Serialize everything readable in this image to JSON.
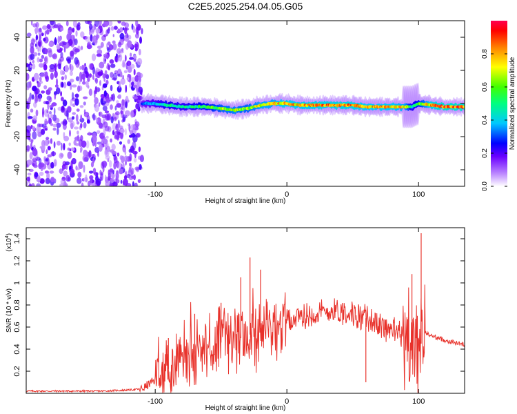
{
  "figure_title": "C2E5.2025.254.04.05.G05",
  "chart_data": [
    {
      "type": "heatmap",
      "title": "C2E5.2025.254.04.05.G05",
      "xlabel": "Height of straight line (km)",
      "ylabel": "Frequency (Hz)",
      "xlim": [
        -198,
        135
      ],
      "ylim": [
        -50,
        50
      ],
      "xticks": [
        -100,
        0,
        100
      ],
      "xtick_labels": [
        "-100",
        "0",
        "100"
      ],
      "yticks": [
        -40,
        -20,
        0,
        20,
        40
      ],
      "ytick_labels": [
        "-40",
        "-20",
        "0",
        "20",
        "40"
      ],
      "noise_region_x": [
        -198,
        -110
      ],
      "ridge": {
        "x": [
          -110,
          -100,
          -90,
          -80,
          -70,
          -60,
          -50,
          -40,
          -30,
          -20,
          -10,
          0,
          10,
          20,
          30,
          40,
          50,
          60,
          70,
          80,
          90,
          95,
          100,
          110,
          120,
          135
        ],
        "freq": [
          0,
          0,
          -1,
          -2,
          -2,
          -2,
          -3,
          -4,
          -3,
          -1,
          0,
          0,
          -1,
          -1,
          -1,
          -1,
          -1,
          -2,
          -2,
          -2,
          -2,
          -2,
          0,
          -1,
          -2,
          -2
        ],
        "amplitude": [
          0.35,
          0.45,
          0.55,
          0.5,
          0.55,
          0.6,
          0.7,
          0.75,
          0.7,
          0.8,
          0.8,
          0.9,
          0.85,
          0.9,
          0.9,
          0.9,
          0.9,
          0.85,
          0.85,
          0.85,
          0.8,
          0.5,
          0.6,
          0.9,
          0.95,
          0.95
        ]
      },
      "colorbar": {
        "label": "Normalized spectral amplitude",
        "range": [
          0,
          1
        ],
        "ticks": [
          0.0,
          0.2,
          0.4,
          0.6,
          0.8
        ],
        "tick_labels": [
          "0.0",
          "0.2",
          "0.4",
          "0.6",
          "0.8"
        ]
      }
    },
    {
      "type": "line",
      "xlabel": "Height of straight line (km)",
      "ylabel": "SNR (10 * v/v)",
      "y_scale_label": "(x10",
      "y_scale_exponent": "4",
      "xlim": [
        -198,
        135
      ],
      "ylim": [
        0,
        1.5
      ],
      "xticks": [
        -100,
        0,
        100
      ],
      "xtick_labels": [
        "-100",
        "0",
        "100"
      ],
      "yticks": [
        0.2,
        0.4,
        0.6,
        0.8,
        1.0,
        1.2,
        1.4
      ],
      "ytick_labels": [
        "0.2",
        "0.4",
        "0.6",
        "0.8",
        "1",
        "1.2",
        "1.4"
      ],
      "series": [
        {
          "name": "SNR",
          "color": "#e8312a",
          "x": [
            -198,
            -180,
            -160,
            -140,
            -120,
            -110,
            -105,
            -100,
            -95,
            -90,
            -85,
            -80,
            -75,
            -70,
            -65,
            -60,
            -55,
            -50,
            -45,
            -40,
            -35,
            -30,
            -25,
            -20,
            -15,
            -10,
            -5,
            0,
            5,
            10,
            15,
            20,
            25,
            30,
            35,
            40,
            45,
            50,
            55,
            60,
            65,
            70,
            75,
            80,
            85,
            90,
            95,
            100,
            103,
            105,
            110,
            120,
            135
          ],
          "values": [
            0.02,
            0.02,
            0.02,
            0.02,
            0.03,
            0.04,
            0.08,
            0.12,
            0.18,
            0.22,
            0.28,
            0.32,
            0.34,
            0.36,
            0.38,
            0.42,
            0.44,
            0.46,
            0.48,
            0.5,
            0.5,
            0.52,
            0.55,
            0.58,
            0.6,
            0.62,
            0.62,
            0.65,
            0.67,
            0.68,
            0.7,
            0.72,
            0.72,
            0.74,
            0.75,
            0.75,
            0.74,
            0.72,
            0.7,
            0.68,
            0.66,
            0.62,
            0.6,
            0.58,
            0.55,
            0.5,
            0.4,
            0.35,
            0.5,
            0.55,
            0.52,
            0.48,
            0.44
          ]
        }
      ],
      "spikes": [
        {
          "x": -90,
          "value": 0.5
        },
        {
          "x": -70,
          "value": 0.72
        },
        {
          "x": -50,
          "value": 0.82
        },
        {
          "x": -35,
          "value": 1.05
        },
        {
          "x": -28,
          "value": 1.23
        },
        {
          "x": -20,
          "value": 1.12
        },
        {
          "x": 60,
          "value": 0.1
        },
        {
          "x": 95,
          "value": 1.08
        },
        {
          "x": 102,
          "value": 1.45
        }
      ]
    }
  ]
}
